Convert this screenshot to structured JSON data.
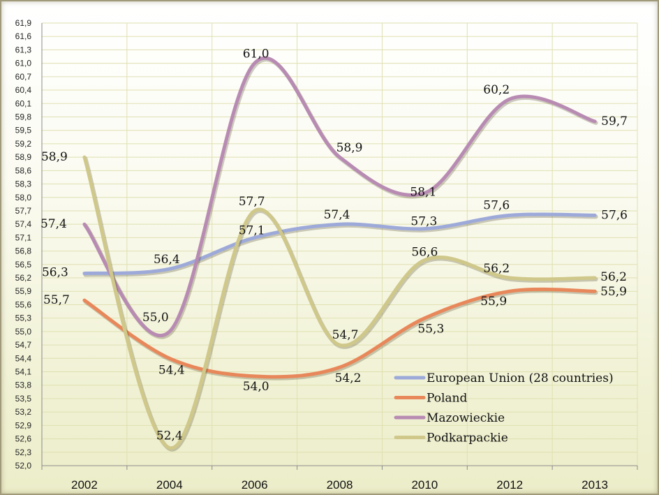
{
  "chart_data": {
    "type": "line",
    "title": "",
    "xlabel": "",
    "ylabel": "",
    "categories": [
      "2002",
      "2004",
      "2006",
      "2008",
      "2010",
      "2012",
      "2013"
    ],
    "ylim": [
      52.0,
      61.9
    ],
    "yticks": [
      "52,0",
      "52,3",
      "52,6",
      "52,9",
      "53,2",
      "53,5",
      "53,8",
      "54,1",
      "54,4",
      "54,7",
      "55,0",
      "55,3",
      "55,6",
      "55,9",
      "56,2",
      "56,5",
      "56,8",
      "57,1",
      "57,4",
      "57,7",
      "58,0",
      "58,3",
      "58,6",
      "58,9",
      "59,2",
      "59,5",
      "59,8",
      "60,1",
      "60,4",
      "60,7",
      "61,0",
      "61,3",
      "61,6",
      "61,9"
    ],
    "grid": true,
    "legend_position": "bottom-right",
    "series": [
      {
        "name": "European Union (28 countries)",
        "color": "#9daad9",
        "values": [
          56.3,
          56.4,
          57.1,
          57.4,
          57.3,
          57.6,
          57.6
        ],
        "labels": [
          "56,3",
          "56,4",
          "57,1",
          "57,4",
          "57,3",
          "57,6",
          "57,6"
        ]
      },
      {
        "name": "Poland",
        "color": "#e8875a",
        "values": [
          55.7,
          54.4,
          54.0,
          54.2,
          55.3,
          55.9,
          55.9
        ],
        "labels": [
          "55,7",
          "54,4",
          "54,0",
          "54,2",
          "55,3",
          "55,9",
          "55,9"
        ]
      },
      {
        "name": "Mazowieckie",
        "color": "#b88bb3",
        "values": [
          57.4,
          55.0,
          61.0,
          58.9,
          58.1,
          60.2,
          59.7
        ],
        "labels": [
          "57,4",
          "55,0",
          "61,0",
          "58,9",
          "58,1",
          "60,2",
          "59,7"
        ]
      },
      {
        "name": "Podkarpackie",
        "color": "#cfc88a",
        "values": [
          58.9,
          52.4,
          57.7,
          54.7,
          56.6,
          56.2,
          56.2
        ],
        "labels": [
          "58,9",
          "52,4",
          "57,7",
          "54,7",
          "56,6",
          "56,2",
          "56,2"
        ]
      }
    ]
  }
}
